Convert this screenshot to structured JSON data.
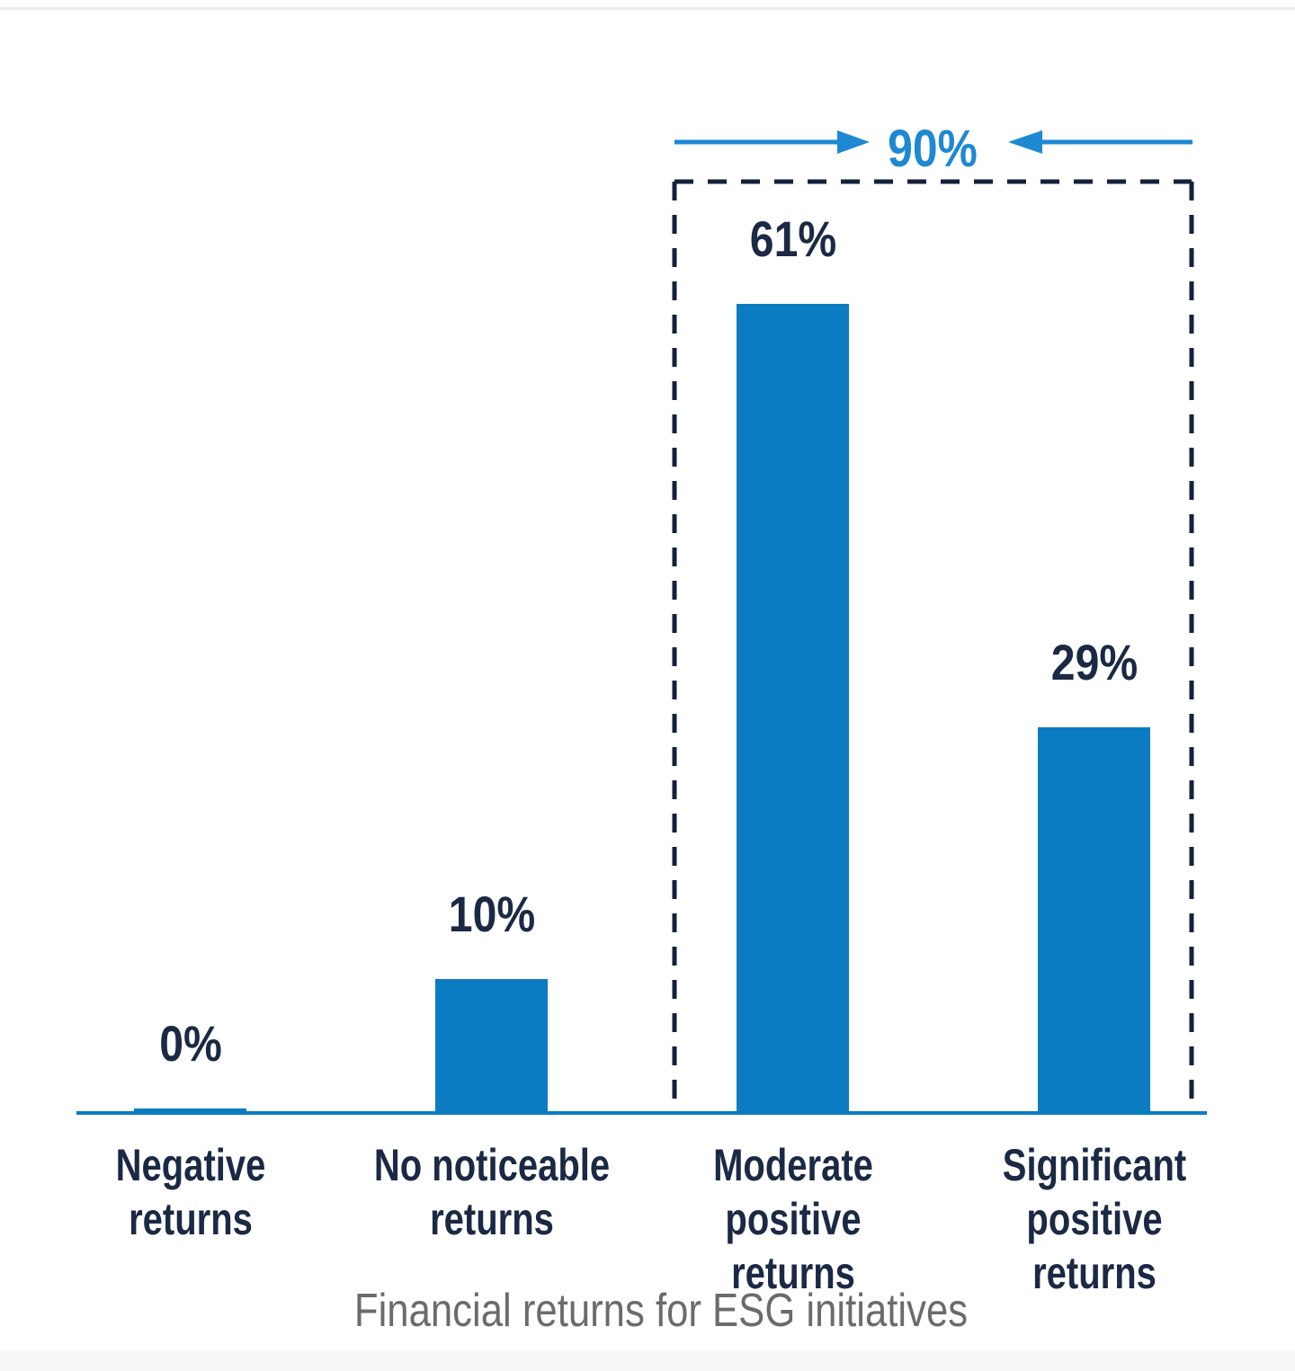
{
  "page": {
    "background_color": "#ffffff",
    "top_hairline_color": "#ececec",
    "bottom_band_color": "#f7f7f8"
  },
  "chart_data": {
    "type": "bar",
    "title": "Financial returns for ESG initiatives",
    "title_position": "bottom",
    "categories": [
      "Negative\nreturns",
      "No noticeable\nreturns",
      "Moderate\npositive returns",
      "Significant\npositive returns"
    ],
    "values": [
      0,
      10,
      61,
      29
    ],
    "value_labels": [
      "0%",
      "10%",
      "61%",
      "29%"
    ],
    "ylim": [
      0,
      65
    ],
    "grid": false,
    "legend": false,
    "bar_color": "#0b7cc1",
    "axis_line_color": "#0b7cc1",
    "value_label_color": "#1b2944",
    "category_label_color": "#1b2944",
    "title_color": "#6b6b6d",
    "annotation": {
      "text": "90%",
      "text_color": "#1e88d2",
      "arrow_color": "#1e88d2",
      "box_color": "#14213a",
      "box_style": "dashed",
      "spans_categories": [
        "Moderate positive returns",
        "Significant positive returns"
      ],
      "meaning": "sum of last two bars"
    }
  }
}
